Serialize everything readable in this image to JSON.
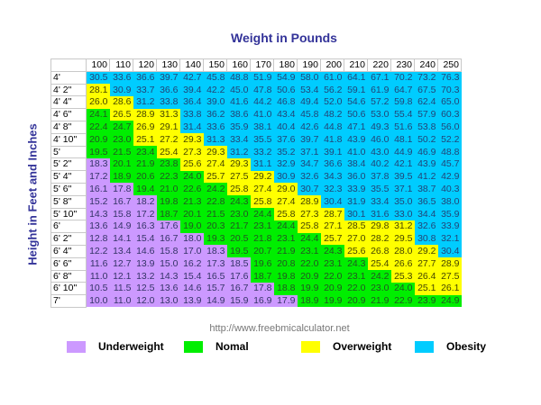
{
  "chart_data": {
    "type": "table",
    "title": "Weight in Pounds",
    "xlabel": "Weight in Pounds",
    "ylabel": "Height in Feet and Inches",
    "columns": [
      "100",
      "110",
      "120",
      "130",
      "140",
      "150",
      "160",
      "170",
      "180",
      "190",
      "200",
      "210",
      "220",
      "230",
      "240",
      "250"
    ],
    "rows": [
      {
        "height": "4'",
        "values": [
          "30.5",
          "33.6",
          "36.6",
          "39.7",
          "42.7",
          "45.8",
          "48.8",
          "51.9",
          "54.9",
          "58.0",
          "61.0",
          "64.1",
          "67.1",
          "70.2",
          "73.2",
          "76.3"
        ],
        "cats": "bbbbbbbbbbbbbbbb"
      },
      {
        "height": "4' 2\"",
        "values": [
          "28.1",
          "30.9",
          "33.7",
          "36.6",
          "39.4",
          "42.2",
          "45.0",
          "47.8",
          "50.6",
          "53.4",
          "56.2",
          "59.1",
          "61.9",
          "64.7",
          "67.5",
          "70.3"
        ],
        "cats": "obbbbbbbbbbbbbbb"
      },
      {
        "height": "4' 4\"",
        "values": [
          "26.0",
          "28.6",
          "31.2",
          "33.8",
          "36.4",
          "39.0",
          "41.6",
          "44.2",
          "46.8",
          "49.4",
          "52.0",
          "54.6",
          "57.2",
          "59.8",
          "62.4",
          "65.0"
        ],
        "cats": "oobbbbbbbbbbbbbb"
      },
      {
        "height": "4' 6\"",
        "values": [
          "24.1",
          "26.5",
          "28.9",
          "31.3",
          "33.8",
          "36.2",
          "38.6",
          "41.0",
          "43.4",
          "45.8",
          "48.2",
          "50.6",
          "53.0",
          "55.4",
          "57.9",
          "60.3"
        ],
        "cats": "nooobbbbbbbbbbbb"
      },
      {
        "height": "4' 8\"",
        "values": [
          "22.4",
          "24.7",
          "26.9",
          "29.1",
          "31.4",
          "33.6",
          "35.9",
          "38.1",
          "40.4",
          "42.6",
          "44.8",
          "47.1",
          "49.3",
          "51.6",
          "53.8",
          "56.0"
        ],
        "cats": "nnoobbbbbbbbbbbb"
      },
      {
        "height": "4' 10\"",
        "values": [
          "20.9",
          "23.0",
          "25.1",
          "27.2",
          "29.3",
          "31.3",
          "33.4",
          "35.5",
          "37.6",
          "39.7",
          "41.8",
          "43.9",
          "46.0",
          "48.1",
          "50.2",
          "52.2"
        ],
        "cats": "nnooobbbbbbbbbbb"
      },
      {
        "height": "5'",
        "values": [
          "19.5",
          "21.5",
          "23.4",
          "25.4",
          "27.3",
          "29.3",
          "31.2",
          "33.2",
          "35.2",
          "37.1",
          "39.1",
          "41.0",
          "43.0",
          "44.9",
          "46.9",
          "48.8"
        ],
        "cats": "nnnooobbbbbbbbbb"
      },
      {
        "height": "5' 2\"",
        "values": [
          "18.3",
          "20.1",
          "21.9",
          "23.8",
          "25.6",
          "27.4",
          "29.3",
          "31.1",
          "32.9",
          "34.7",
          "36.6",
          "38.4",
          "40.2",
          "42.1",
          "43.9",
          "45.7"
        ],
        "cats": "unnnooobbbbbbbbb"
      },
      {
        "height": "5' 4\"",
        "values": [
          "17.2",
          "18.9",
          "20.6",
          "22.3",
          "24.0",
          "25.7",
          "27.5",
          "29.2",
          "30.9",
          "32.6",
          "34.3",
          "36.0",
          "37.8",
          "39.5",
          "41.2",
          "42.9"
        ],
        "cats": "unnnnooobbbbbbbb"
      },
      {
        "height": "5' 6\"",
        "values": [
          "16.1",
          "17.8",
          "19.4",
          "21.0",
          "22.6",
          "24.2",
          "25.8",
          "27.4",
          "29.0",
          "30.7",
          "32.3",
          "33.9",
          "35.5",
          "37.1",
          "38.7",
          "40.3"
        ],
        "cats": "uunnnnooobbbbbbb"
      },
      {
        "height": "5' 8\"",
        "values": [
          "15.2",
          "16.7",
          "18.2",
          "19.8",
          "21.3",
          "22.8",
          "24.3",
          "25.8",
          "27.4",
          "28.9",
          "30.4",
          "31.9",
          "33.4",
          "35.0",
          "36.5",
          "38.0"
        ],
        "cats": "uuunnnnooobbbbbb"
      },
      {
        "height": "5' 10\"",
        "values": [
          "14.3",
          "15.8",
          "17.2",
          "18.7",
          "20.1",
          "21.5",
          "23.0",
          "24.4",
          "25.8",
          "27.3",
          "28.7",
          "30.1",
          "31.6",
          "33.0",
          "34.4",
          "35.9"
        ],
        "cats": "uuunnnnnooobbbbb"
      },
      {
        "height": "6'",
        "values": [
          "13.6",
          "14.9",
          "16.3",
          "17.6",
          "19.0",
          "20.3",
          "21.7",
          "23.1",
          "24.4",
          "25.8",
          "27.1",
          "28.5",
          "29.8",
          "31.2",
          "32.6",
          "33.9"
        ],
        "cats": "uuuunnnnnooooobb"
      },
      {
        "height": "6' 2\"",
        "values": [
          "12.8",
          "14.1",
          "15.4",
          "16.7",
          "18.0",
          "19.3",
          "20.5",
          "21.8",
          "23.1",
          "24.4",
          "25.7",
          "27.0",
          "28.2",
          "29.5",
          "30.8",
          "32.1"
        ],
        "cats": "uuuuunnnnnoooobb"
      },
      {
        "height": "6' 4\"",
        "values": [
          "12.2",
          "13.4",
          "14.6",
          "15.8",
          "17.0",
          "18.3",
          "19.5",
          "20.7",
          "21.9",
          "23.1",
          "24.3",
          "25.6",
          "26.8",
          "28.0",
          "29.2",
          "30.4"
        ],
        "cats": "uuuuuunnnnnoooob"
      },
      {
        "height": "6' 6\"",
        "values": [
          "11.6",
          "12.7",
          "13.9",
          "15.0",
          "16.2",
          "17.3",
          "18.5",
          "19.6",
          "20.8",
          "22.0",
          "23.1",
          "24.3",
          "25.4",
          "26.6",
          "27.7",
          "28.9"
        ],
        "cats": "uuuuuuunnnnnoooo"
      },
      {
        "height": "6' 8\"",
        "values": [
          "11.0",
          "12.1",
          "13.2",
          "14.3",
          "15.4",
          "16.5",
          "17.6",
          "18.7",
          "19.8",
          "20.9",
          "22.0",
          "23.1",
          "24.2",
          "25.3",
          "26.4",
          "27.5"
        ],
        "cats": "uuuuuuunnnnnnooo"
      },
      {
        "height": "6' 10\"",
        "values": [
          "10.5",
          "11.5",
          "12.5",
          "13.6",
          "14.6",
          "15.7",
          "16.7",
          "17.8",
          "18.8",
          "19.9",
          "20.9",
          "22.0",
          "23.0",
          "24.0",
          "25.1",
          "26.1"
        ],
        "cats": "uuuuuuuunnnnnnoo"
      },
      {
        "height": "7'",
        "values": [
          "10.0",
          "11.0",
          "12.0",
          "13.0",
          "13.9",
          "14.9",
          "15.9",
          "16.9",
          "17.9",
          "18.9",
          "19.9",
          "20.9",
          "21.9",
          "22.9",
          "23.9",
          "24.9"
        ],
        "cats": "uuuuuuuuunnnnnnn"
      }
    ],
    "legend": [
      {
        "key": "u",
        "label": "Underweight",
        "color": "#cc99ff"
      },
      {
        "key": "n",
        "label": "Nomal",
        "color": "#00ee00"
      },
      {
        "key": "o",
        "label": "Overweight",
        "color": "#ffff00"
      },
      {
        "key": "b",
        "label": "Obesity",
        "color": "#00ccff"
      }
    ],
    "legend_position": "bottom"
  },
  "source_url": "http://www.freebmicalculator.net"
}
